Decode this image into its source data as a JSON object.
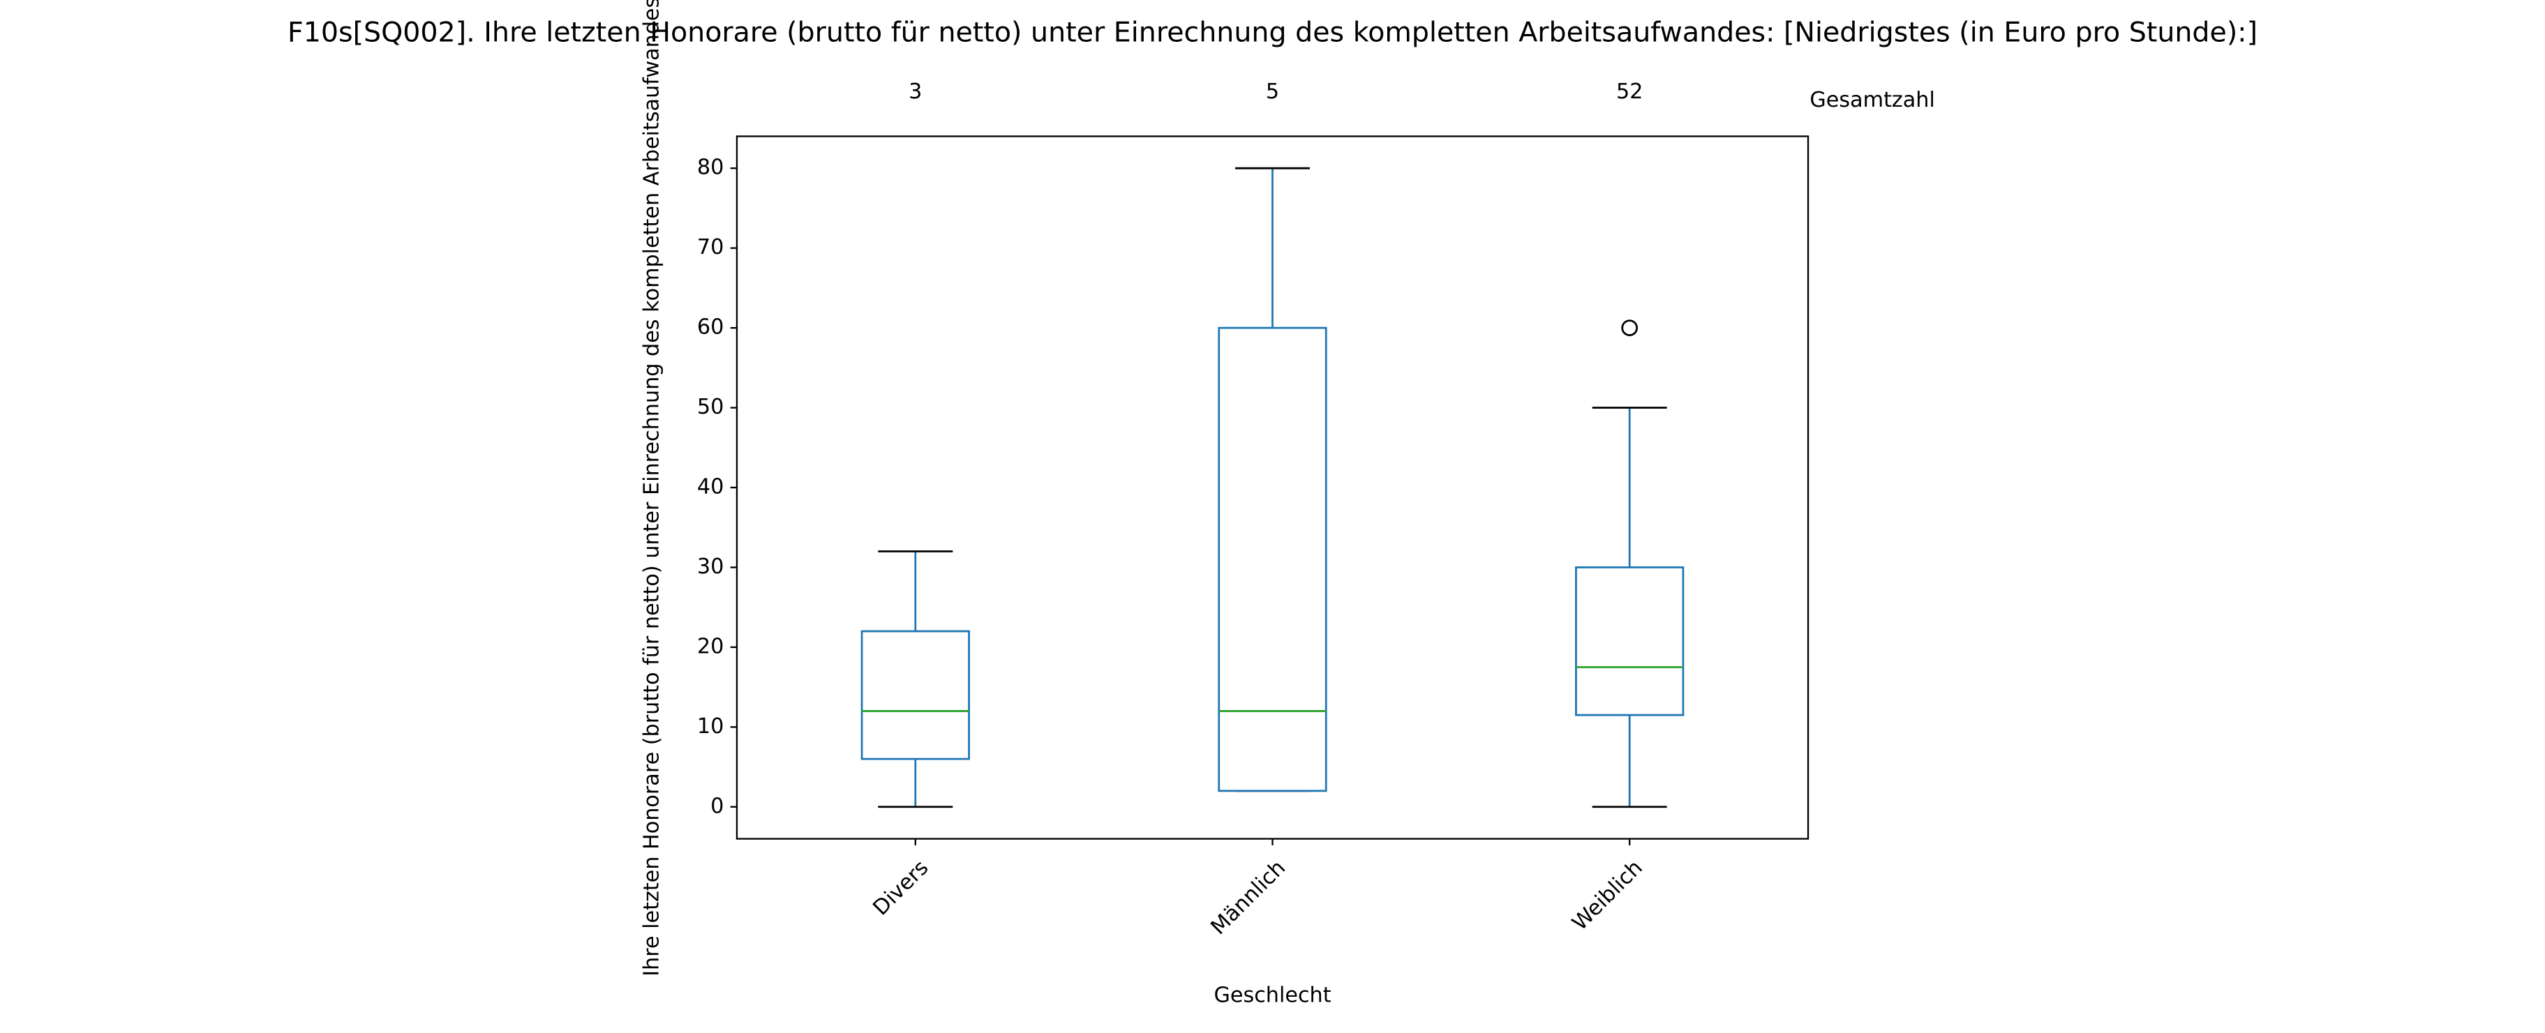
{
  "chart_data": {
    "type": "box",
    "title": "F10s[SQ002]. Ihre letzten Honorare (brutto für netto) unter Einrechnung des kompletten Arbeitsaufwandes:  [Niedrigstes (in Euro pro Stunde):]",
    "xlabel": "Geschlecht",
    "ylabel": "Ihre letzten Honorare (brutto für netto) unter Einrechnung des kompletten Arbeitsaufwandes",
    "categories": [
      "Divers",
      "Männlich",
      "Weiblich"
    ],
    "boxes": [
      {
        "whislo": 0,
        "q1": 6,
        "median": 12,
        "q3": 22,
        "whishi": 32
      },
      {
        "whislo": 2,
        "q1": 2,
        "median": 12,
        "q3": 60,
        "whishi": 80
      },
      {
        "whislo": 0,
        "q1": 11.5,
        "median": 17.5,
        "q3": 30,
        "whishi": 50,
        "fliers": [
          60
        ]
      }
    ],
    "counts": [
      3,
      5,
      52
    ],
    "count_label": "Gesamtzahl",
    "box_color": "#1f77b4",
    "median_color": "#2ca02c",
    "ylim": [
      -4,
      84
    ],
    "yticks": [
      0,
      10,
      20,
      30,
      40,
      50,
      60,
      70,
      80
    ]
  }
}
